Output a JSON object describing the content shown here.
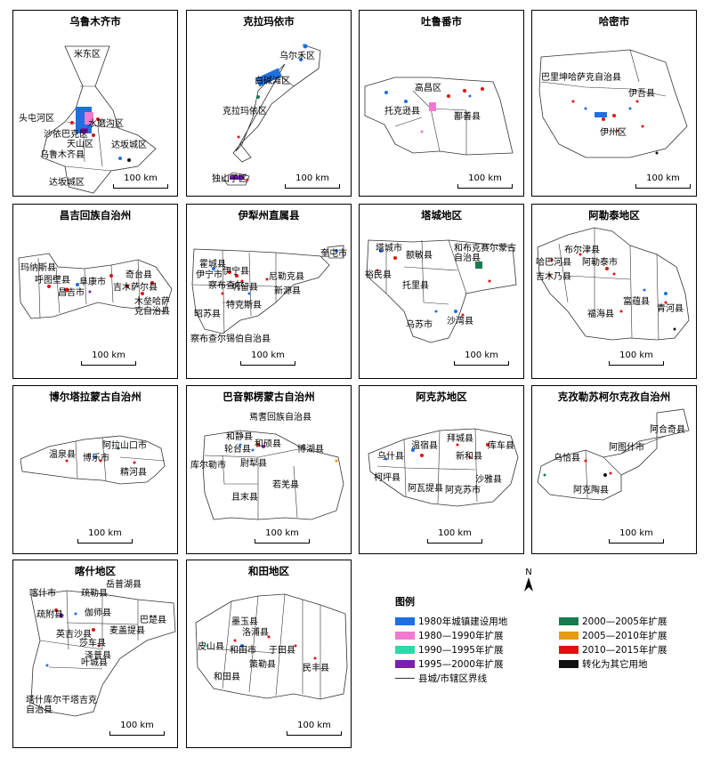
{
  "panels": [
    {
      "id": "p1",
      "title": "乌鲁木齐市",
      "labels": [
        "米东区",
        "头屯河区",
        "水磨沟区",
        "沙依巴克区",
        "天山区",
        "达坂城区",
        "乌鲁木齐县",
        "达坂城区"
      ],
      "scale": "100 km"
    },
    {
      "id": "p2",
      "title": "克拉玛依市",
      "labels": [
        "乌尔禾区",
        "白碱滩区",
        "克拉玛依区",
        "独山子区"
      ],
      "scale": "100 km"
    },
    {
      "id": "p3",
      "title": "吐鲁番市",
      "labels": [
        "高昌区",
        "托克逊县",
        "鄯善县"
      ],
      "scale": "100 km"
    },
    {
      "id": "p4",
      "title": "哈密市",
      "labels": [
        "巴里坤哈萨克自治县",
        "伊吾县",
        "伊州区"
      ],
      "scale": "100 km"
    },
    {
      "id": "p5",
      "title": "昌吉回族自治州",
      "labels": [
        "玛纳斯县",
        "呼图壁县",
        "昌吉市",
        "阜康市",
        "奇台县",
        "吉木萨尔县",
        "木垒哈萨克自治县"
      ],
      "scale": "100 km"
    },
    {
      "id": "p6",
      "title": "伊犁州直属县",
      "labels": [
        "霍城县",
        "伊宁县",
        "伊宁市",
        "尼勒克县",
        "奎屯市",
        "察布查尔",
        "巩留县",
        "新源县",
        "昭苏县",
        "特克斯县",
        "察布查尔锡伯自治县"
      ],
      "scale": "100 km"
    },
    {
      "id": "p7",
      "title": "塔城地区",
      "labels": [
        "塔城市",
        "额敏县",
        "和布克赛尔蒙古自治县",
        "裕民县",
        "托里县",
        "乌苏市",
        "沙湾县"
      ],
      "scale": "100 km"
    },
    {
      "id": "p8",
      "title": "阿勒泰地区",
      "labels": [
        "布尔津县",
        "哈巴河县",
        "阿勒泰市",
        "吉木乃县",
        "富蕴县",
        "青河县",
        "福海县"
      ],
      "scale": "100 km"
    },
    {
      "id": "p9",
      "title": "博尔塔拉蒙古自治州",
      "labels": [
        "温泉县",
        "阿拉山口市",
        "博乐市",
        "精河县"
      ],
      "scale": "100 km"
    },
    {
      "id": "p10",
      "title": "巴音郭楞蒙古自治州",
      "labels": [
        "焉耆回族自治县",
        "和静县",
        "和硕县",
        "轮台县",
        "博湖县",
        "库尔勒市",
        "尉犁县",
        "若羌县",
        "且末县"
      ],
      "scale": "100 km"
    },
    {
      "id": "p11",
      "title": "阿克苏地区",
      "labels": [
        "拜城县",
        "温宿县",
        "库车县",
        "乌什县",
        "新和县",
        "柯坪县",
        "沙雅县",
        "阿瓦提县",
        "阿克苏市"
      ],
      "scale": "100 km"
    },
    {
      "id": "p12",
      "title": "克孜勒苏柯尔克孜自治州",
      "labels": [
        "阿合奇县",
        "阿图什市",
        "乌恰县",
        "阿克陶县"
      ],
      "scale": "100 km"
    },
    {
      "id": "p13",
      "title": "喀什地区",
      "labels": [
        "岳普湖县",
        "喀什市",
        "疏勒县",
        "疏附县",
        "伽师县",
        "巴楚县",
        "英吉沙县",
        "麦盖提县",
        "莎车县",
        "泽普县",
        "叶城县",
        "塔什库尔干塔吉克自治县"
      ],
      "scale": "100 km"
    },
    {
      "id": "p14",
      "title": "和田地区",
      "labels": [
        "墨玉县",
        "洛浦县",
        "皮山县",
        "和田市",
        "于田县",
        "民丰县",
        "和田县",
        "策勒县"
      ],
      "scale": "100 km"
    }
  ],
  "legend": {
    "title": "图例",
    "items": [
      {
        "label": "1980年城镇建设用地",
        "color": "#1f6fe0"
      },
      {
        "label": "1980—1990年扩展",
        "color": "#f07ad0"
      },
      {
        "label": "1990—1995年扩展",
        "color": "#2fd8a8"
      },
      {
        "label": "1995—2000年扩展",
        "color": "#7a1fb0"
      },
      {
        "label": "2000—2005年扩展",
        "color": "#1a7a50"
      },
      {
        "label": "2005—2010年扩展",
        "color": "#e89a10"
      },
      {
        "label": "2010—2015年扩展",
        "color": "#e01010"
      },
      {
        "label": "转化为其它用地",
        "color": "#111111"
      }
    ],
    "boundary": "县城/市辖区界线"
  },
  "north": "N"
}
